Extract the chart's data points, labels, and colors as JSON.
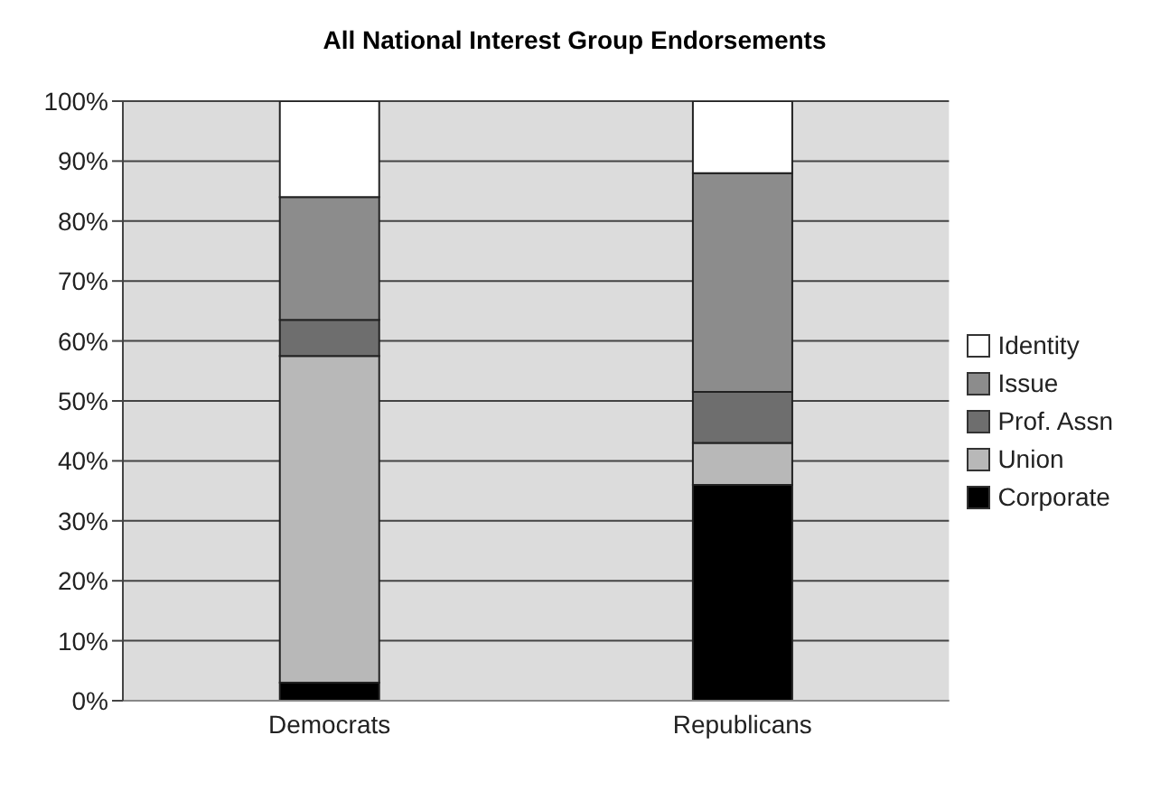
{
  "chart_data": {
    "type": "bar",
    "title": "All National Interest Group Endorsements",
    "categories": [
      "Democrats",
      "Republicans"
    ],
    "stacked": true,
    "series": [
      {
        "name": "Corporate",
        "color": "#000000",
        "values": [
          3,
          36
        ]
      },
      {
        "name": "Union",
        "color": "#b8b8b8",
        "values": [
          54.5,
          7
        ]
      },
      {
        "name": "Prof. Assn",
        "color": "#6e6e6e",
        "values": [
          6,
          8.5
        ]
      },
      {
        "name": "Issue",
        "color": "#8c8c8c",
        "values": [
          20.5,
          36.5
        ]
      },
      {
        "name": "Identity",
        "color": "#ffffff",
        "values": [
          16,
          12
        ]
      }
    ],
    "ylim": [
      0,
      100
    ],
    "yticks": [
      {
        "value": 0,
        "label": "0%"
      },
      {
        "value": 10,
        "label": "10%"
      },
      {
        "value": 20,
        "label": "20%"
      },
      {
        "value": 30,
        "label": "30%"
      },
      {
        "value": 40,
        "label": "40%"
      },
      {
        "value": 50,
        "label": "50%"
      },
      {
        "value": 60,
        "label": "60%"
      },
      {
        "value": 70,
        "label": "70%"
      },
      {
        "value": 80,
        "label": "80%"
      },
      {
        "value": 90,
        "label": "90%"
      },
      {
        "value": 100,
        "label": "100%"
      }
    ],
    "grid": "y",
    "legend": "right"
  }
}
